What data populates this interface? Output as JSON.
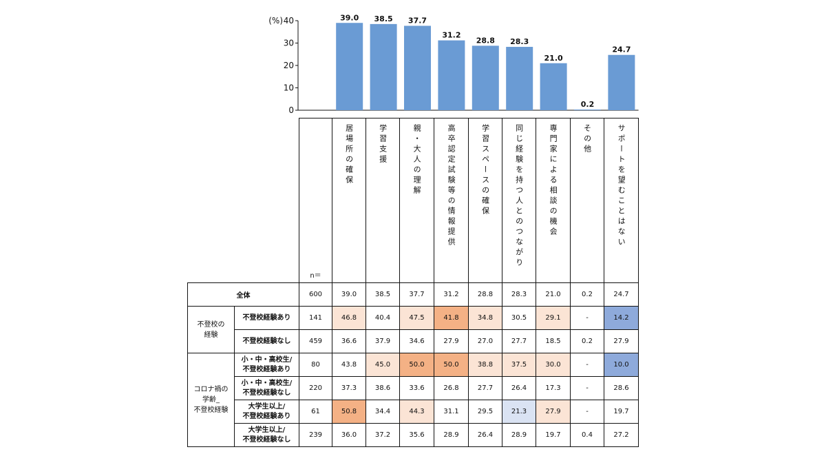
{
  "chart_data": {
    "type": "bar",
    "unit_label": "(%)",
    "ylim": [
      0,
      40
    ],
    "yticks": [
      "0",
      "10",
      "20",
      "30",
      "40"
    ],
    "categories": [
      "居場所の確保",
      "学習支援",
      "親・大人の理解",
      "高卒認定試験等の情報提供",
      "学習スペースの確保",
      "同じ経験を持つ人とのつながり",
      "専門家による相談の機会",
      "その他",
      "サポートを望むことはない"
    ],
    "values": [
      39.0,
      38.5,
      37.7,
      31.2,
      28.8,
      28.3,
      21.0,
      0.2,
      24.7
    ],
    "value_labels": [
      "39.0",
      "38.5",
      "37.7",
      "31.2",
      "28.8",
      "28.3",
      "21.0",
      "0.2",
      "24.7"
    ],
    "bar_color": "#6a9bd4"
  },
  "table": {
    "n_header": "n＝",
    "overall_label": "全体",
    "colors": {
      "high": "#f4b185",
      "mid": "#fbe4d5",
      "low": "#8eaadb",
      "lowlight": "#dae3f3"
    },
    "rows": [
      {
        "group": "",
        "label": "全体",
        "n": "600",
        "values": [
          "39.0",
          "38.5",
          "37.7",
          "31.2",
          "28.8",
          "28.3",
          "21.0",
          "0.2",
          "24.7"
        ],
        "shades": [
          "",
          "",
          "",
          "",
          "",
          "",
          "",
          "",
          ""
        ]
      },
      {
        "group": "不登校の経験",
        "label": "不登校経験あり",
        "n": "141",
        "values": [
          "46.8",
          "40.4",
          "47.5",
          "41.8",
          "34.8",
          "30.5",
          "29.1",
          "-",
          "14.2"
        ],
        "shades": [
          "mid",
          "",
          "mid",
          "high",
          "mid",
          "",
          "mid",
          "",
          "low"
        ]
      },
      {
        "group": "",
        "label": "不登校経験なし",
        "n": "459",
        "values": [
          "36.6",
          "37.9",
          "34.6",
          "27.9",
          "27.0",
          "27.7",
          "18.5",
          "0.2",
          "27.9"
        ],
        "shades": [
          "",
          "",
          "",
          "",
          "",
          "",
          "",
          "",
          ""
        ]
      },
      {
        "group": "コロナ禍の学齢_不登校経験",
        "label": "小・中・高校生/不登校経験あり",
        "n": "80",
        "values": [
          "43.8",
          "45.0",
          "50.0",
          "50.0",
          "38.8",
          "37.5",
          "30.0",
          "-",
          "10.0"
        ],
        "shades": [
          "",
          "mid",
          "high",
          "high",
          "mid",
          "mid",
          "mid",
          "",
          "low"
        ]
      },
      {
        "group": "",
        "label": "小・中・高校生/不登校経験なし",
        "n": "220",
        "values": [
          "37.3",
          "38.6",
          "33.6",
          "26.8",
          "27.7",
          "26.4",
          "17.3",
          "-",
          "28.6"
        ],
        "shades": [
          "",
          "",
          "",
          "",
          "",
          "",
          "",
          "",
          ""
        ]
      },
      {
        "group": "",
        "label": "大学生以上/不登校経験あり",
        "n": "61",
        "values": [
          "50.8",
          "34.4",
          "44.3",
          "31.1",
          "29.5",
          "21.3",
          "27.9",
          "-",
          "19.7"
        ],
        "shades": [
          "high",
          "",
          "mid",
          "",
          "",
          "lowlight",
          "mid",
          "",
          ""
        ]
      },
      {
        "group": "",
        "label": "大学生以上/不登校経験なし",
        "n": "239",
        "values": [
          "36.0",
          "37.2",
          "35.6",
          "28.9",
          "26.4",
          "28.9",
          "19.7",
          "0.4",
          "27.2"
        ],
        "shades": [
          "",
          "",
          "",
          "",
          "",
          "",
          "",
          "",
          ""
        ]
      }
    ],
    "group_labels": {
      "g1_line1": "不登校の",
      "g1_line2": "経験",
      "g2_line1": "コロナ禍の",
      "g2_line2": "学齢_",
      "g2_line3": "不登校経験"
    },
    "sub_labels": {
      "r1": "不登校経験あり",
      "r2": "不登校経験なし",
      "r3a": "小・中・高校生/",
      "r3b": "不登校経験あり",
      "r4a": "小・中・高校生/",
      "r4b": "不登校経験なし",
      "r5a": "大学生以上/",
      "r5b": "不登校経験あり",
      "r6a": "大学生以上/",
      "r6b": "不登校経験なし"
    }
  }
}
